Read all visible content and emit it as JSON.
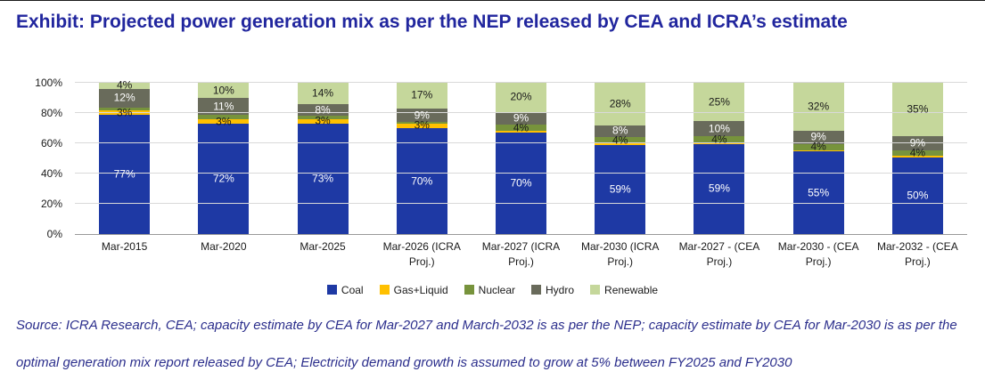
{
  "title": "Exhibit: Projected power generation mix as per the NEP released by CEA and ICRA’s estimate",
  "source": {
    "line1": "Source: ICRA Research, CEA; capacity estimate by CEA for Mar-2027 and March-2032 is as per the NEP; capacity estimate by CEA for Mar-2030 is as per the",
    "line2": "optimal generation mix report released by CEA; Electricity demand growth is assumed to grow at 5% between FY2025 and FY2030"
  },
  "chart_data": {
    "type": "bar",
    "stacked": true,
    "unit": "%",
    "title": "Projected power generation mix as per the NEP released by CEA and ICRA's estimate",
    "categories": [
      "Mar-2015",
      "Mar-2020",
      "Mar-2025",
      "Mar-2026 (ICRA Proj.)",
      "Mar-2027 (ICRA Proj.)",
      "Mar-2030 (ICRA Proj.)",
      "Mar-2027 - (CEA Proj.)",
      "Mar-2030 - (CEA Proj.)",
      "Mar-2032 - (CEA Proj.)"
    ],
    "series": [
      {
        "name": "Coal",
        "color": "#1E39A4",
        "label_color": "#FFFFFF",
        "values": [
          77,
          72,
          73,
          70,
          70,
          59,
          59,
          55,
          50
        ],
        "labels": [
          "77%",
          "72%",
          "73%",
          "70%",
          "70%",
          "59%",
          "59%",
          "55%",
          "50%"
        ]
      },
      {
        "name": "Gas+Liquid",
        "color": "#FFC000",
        "label_color": "#1A1A1A",
        "values": [
          3,
          3,
          3,
          3,
          1,
          1,
          1,
          1,
          1
        ],
        "labels": [
          "3%",
          "3%",
          "3%",
          "3%",
          "",
          "",
          "",
          "",
          ""
        ]
      },
      {
        "name": "Nuclear",
        "color": "#77933C",
        "label_color": "#1A1A1A",
        "values": [
          2,
          3,
          2,
          1,
          4,
          4,
          4,
          4,
          4
        ],
        "labels": [
          "",
          "",
          "",
          "",
          "4%",
          "4%",
          "4%",
          "4%",
          "4%"
        ]
      },
      {
        "name": "Hydro",
        "color": "#696B5B",
        "label_color": "#FFFFFF",
        "values": [
          12,
          11,
          8,
          9,
          9,
          8,
          10,
          9,
          9
        ],
        "labels": [
          "12%",
          "11%",
          "8%",
          "9%",
          "9%",
          "8%",
          "10%",
          "9%",
          "9%"
        ]
      },
      {
        "name": "Renewable",
        "color": "#C5D79B",
        "label_color": "#1A1A1A",
        "values": [
          4,
          10,
          14,
          17,
          20,
          28,
          25,
          32,
          35
        ],
        "labels": [
          "4%",
          "10%",
          "14%",
          "17%",
          "20%",
          "28%",
          "25%",
          "32%",
          "35%"
        ]
      }
    ],
    "y_axis": {
      "min": 0,
      "max": 100,
      "tick_labels": [
        "0%",
        "20%",
        "40%",
        "60%",
        "80%",
        "100%"
      ]
    },
    "gridlines": true,
    "legend": [
      "Coal",
      "Gas+Liquid",
      "Nuclear",
      "Hydro",
      "Renewable"
    ],
    "legend_position": "bottom"
  }
}
